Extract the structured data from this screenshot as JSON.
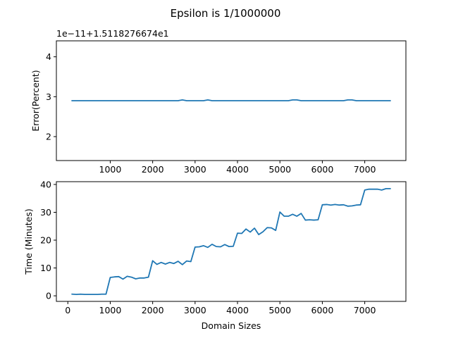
{
  "figure": {
    "title": "Epsilon is 1/1000000",
    "line_color": "#1f77b4"
  },
  "chart_data": [
    {
      "type": "line",
      "title": "",
      "xlabel": "",
      "ylabel": "Error(Percent)",
      "offset_text": "1e−11+1.5118276674e1",
      "xlim": [
        -270,
        7970
      ],
      "ylim": [
        1.4,
        4.4
      ],
      "x_ticks": [
        1000,
        2000,
        3000,
        4000,
        5000,
        6000,
        7000
      ],
      "x_tick_labels": [
        "1000",
        "2000",
        "3000",
        "4000",
        "5000",
        "6000",
        "7000"
      ],
      "y_ticks": [
        2,
        3,
        4
      ],
      "y_tick_labels": [
        "2",
        "3",
        "4"
      ],
      "series": [
        {
          "x": [
            100,
            2600,
            2700,
            2800,
            3200,
            3300,
            3400,
            5200,
            5300,
            5400,
            5500,
            6500,
            6600,
            6700,
            6800,
            7600
          ],
          "values": [
            2.9,
            2.9,
            2.92,
            2.9,
            2.9,
            2.92,
            2.9,
            2.9,
            2.92,
            2.92,
            2.9,
            2.9,
            2.92,
            2.92,
            2.9,
            2.9
          ]
        }
      ]
    },
    {
      "type": "line",
      "title": "",
      "xlabel": "Domain Sizes",
      "ylabel": "Time (Minutes)",
      "xlim": [
        -270,
        7970
      ],
      "ylim": [
        -2,
        41
      ],
      "x_ticks": [
        0,
        1000,
        2000,
        3000,
        4000,
        5000,
        6000,
        7000
      ],
      "x_tick_labels": [
        "0",
        "1000",
        "2000",
        "3000",
        "4000",
        "5000",
        "6000",
        "7000"
      ],
      "y_ticks": [
        0,
        10,
        20,
        30,
        40
      ],
      "y_tick_labels": [
        "0",
        "10",
        "20",
        "30",
        "40"
      ],
      "series": [
        {
          "x": [
            100,
            200,
            300,
            400,
            500,
            600,
            700,
            800,
            900,
            1000,
            1100,
            1200,
            1300,
            1400,
            1500,
            1600,
            1700,
            1800,
            1900,
            2000,
            2100,
            2200,
            2300,
            2400,
            2500,
            2600,
            2700,
            2800,
            2900,
            3000,
            3100,
            3200,
            3300,
            3400,
            3500,
            3600,
            3700,
            3800,
            3900,
            4000,
            4100,
            4200,
            4300,
            4400,
            4500,
            4600,
            4700,
            4800,
            4900,
            5000,
            5100,
            5200,
            5300,
            5400,
            5500,
            5600,
            5700,
            5800,
            5900,
            6000,
            6100,
            6200,
            6300,
            6400,
            6500,
            6600,
            6700,
            6800,
            6900,
            7000,
            7100,
            7200,
            7300,
            7400,
            7500,
            7600
          ],
          "values": [
            0.6,
            0.5,
            0.6,
            0.5,
            0.5,
            0.5,
            0.5,
            0.6,
            0.6,
            6.6,
            6.8,
            6.9,
            6.0,
            7.0,
            6.7,
            6.1,
            6.4,
            6.4,
            6.7,
            12.6,
            11.3,
            12.0,
            11.4,
            12.0,
            11.6,
            12.4,
            11.2,
            12.5,
            12.3,
            17.5,
            17.6,
            18.0,
            17.4,
            18.5,
            17.7,
            17.6,
            18.4,
            17.7,
            17.8,
            22.5,
            22.4,
            24.0,
            22.9,
            24.3,
            22.0,
            23.0,
            24.5,
            24.4,
            23.5,
            30.1,
            28.6,
            28.6,
            29.3,
            28.6,
            29.6,
            27.2,
            27.3,
            27.2,
            27.3,
            32.7,
            32.8,
            32.6,
            32.8,
            32.6,
            32.7,
            32.2,
            32.3,
            32.6,
            32.7,
            38.0,
            38.3,
            38.3,
            38.3,
            38.0,
            38.5,
            38.5
          ]
        }
      ]
    }
  ]
}
